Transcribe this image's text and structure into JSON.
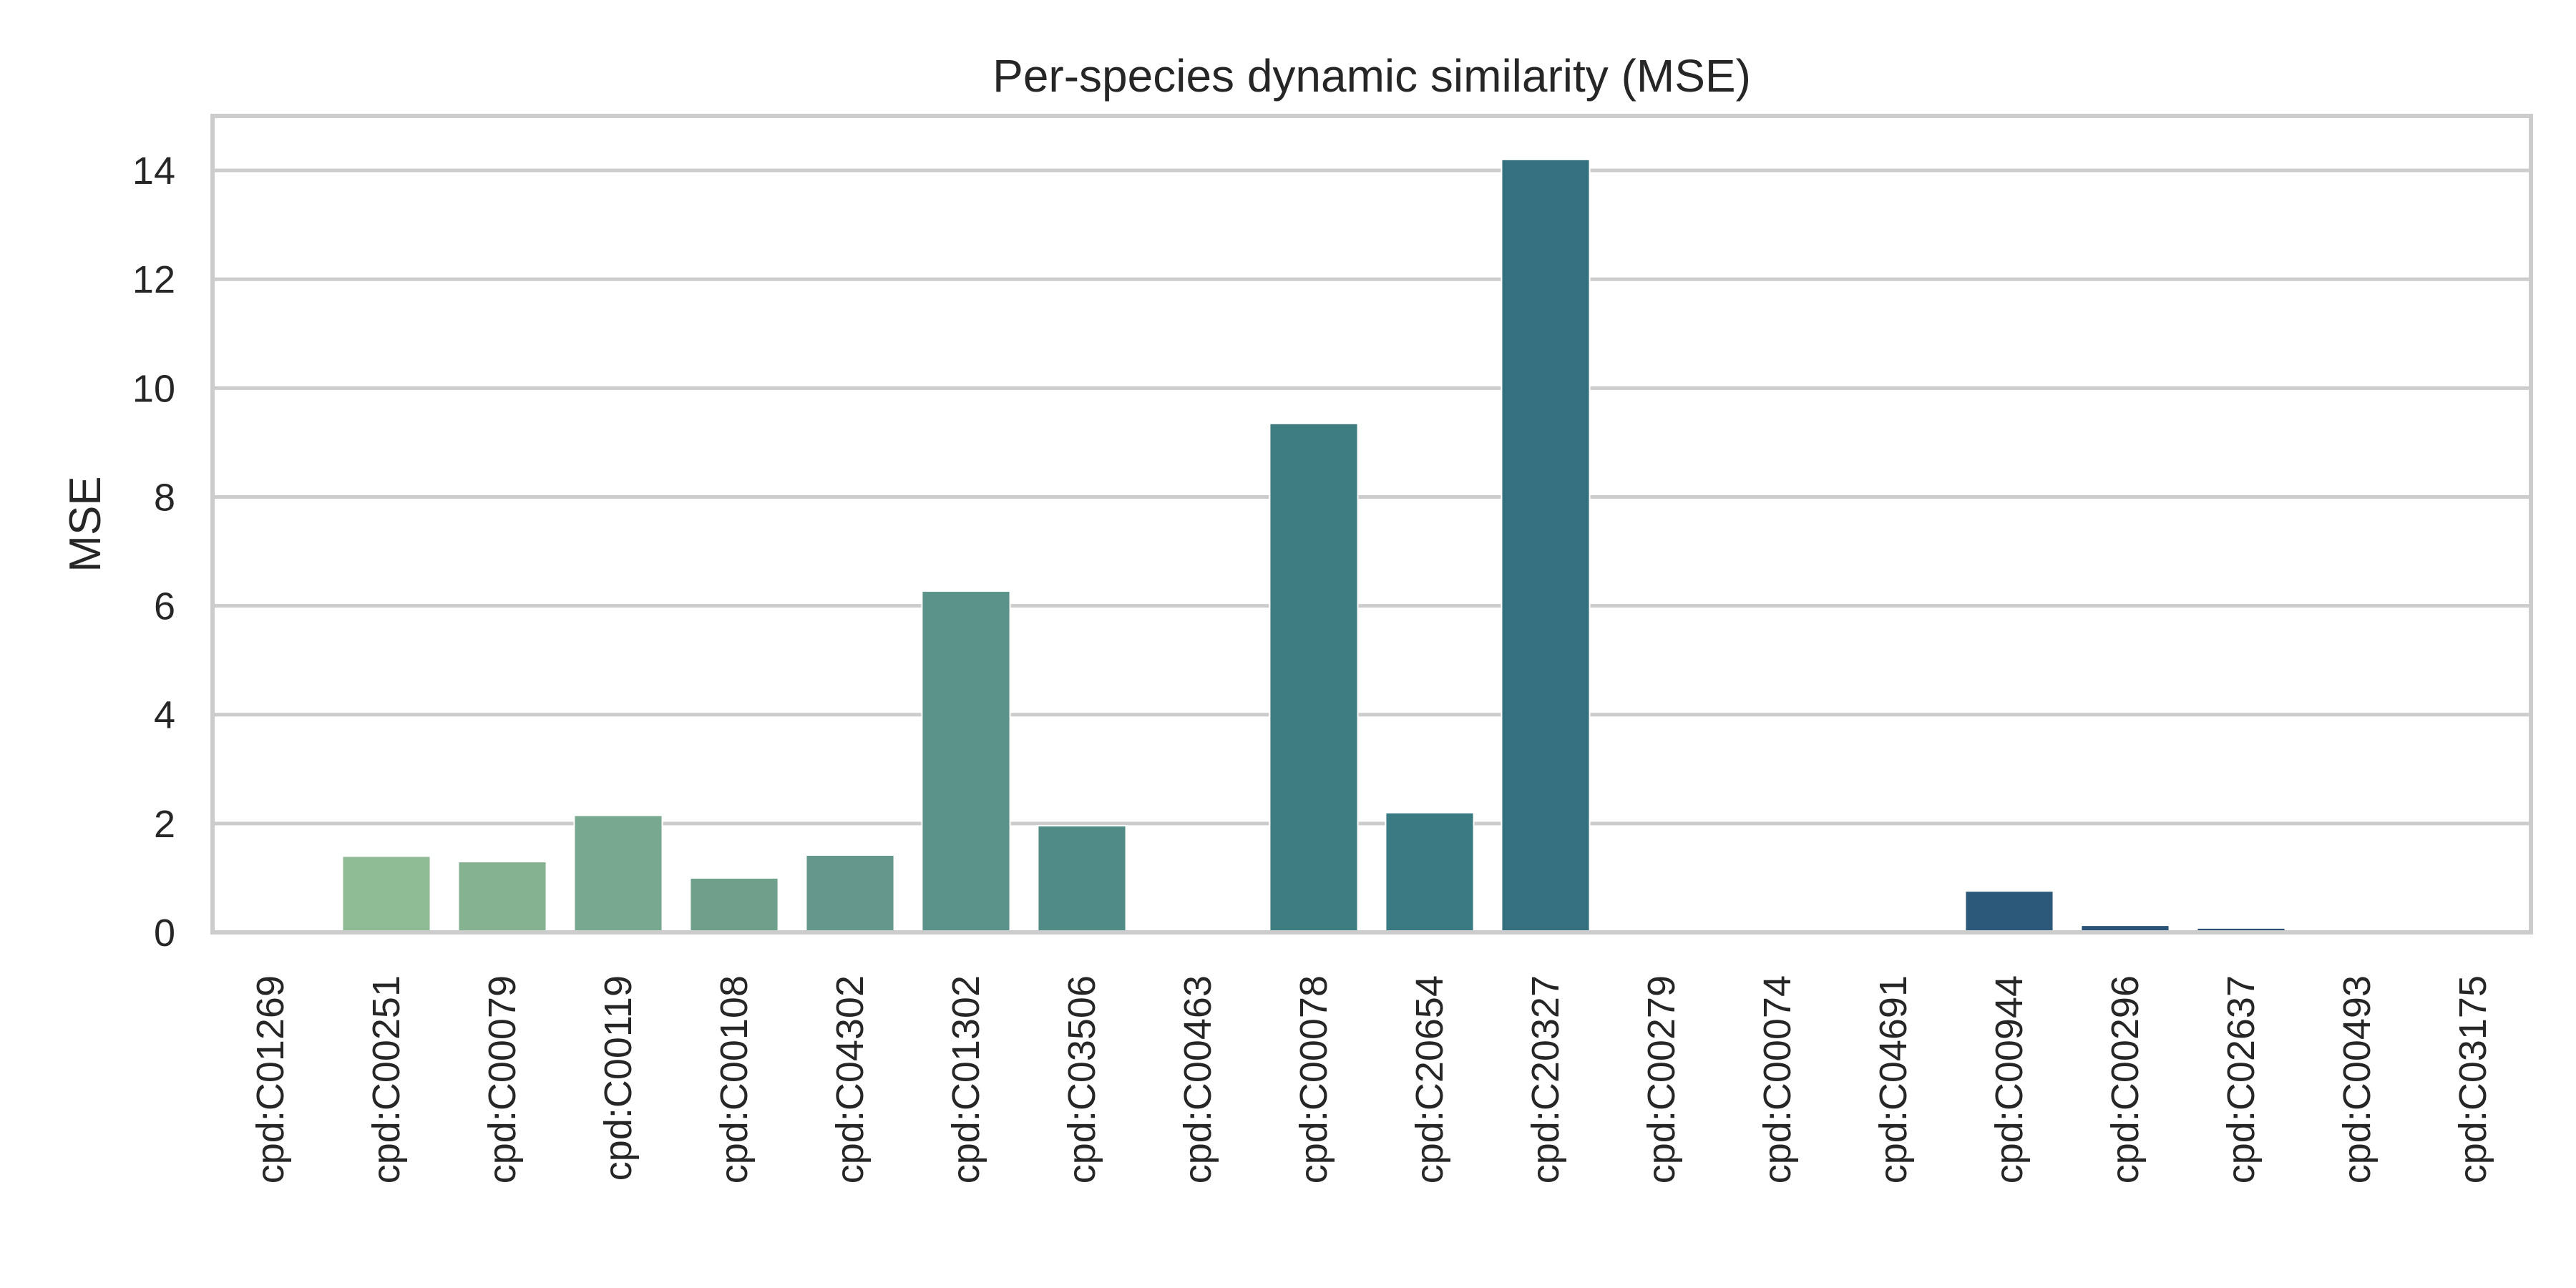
{
  "chart_data": {
    "type": "bar",
    "title": "Per-species dynamic similarity (MSE)",
    "xlabel": "",
    "ylabel": "MSE",
    "ylim": [
      0,
      15
    ],
    "yticks": [
      0,
      2,
      4,
      6,
      8,
      10,
      12,
      14
    ],
    "grid": "horizontal",
    "categories": [
      "cpd:C01269",
      "cpd:C00251",
      "cpd:C00079",
      "cpd:C00119",
      "cpd:C00108",
      "cpd:C04302",
      "cpd:C01302",
      "cpd:C03506",
      "cpd:C00463",
      "cpd:C00078",
      "cpd:C20654",
      "cpd:C20327",
      "cpd:C00279",
      "cpd:C00074",
      "cpd:C04691",
      "cpd:C00944",
      "cpd:C00296",
      "cpd:C02637",
      "cpd:C00493",
      "cpd:C03175"
    ],
    "values": [
      0.0,
      1.4,
      1.3,
      2.15,
      1.0,
      1.42,
      6.27,
      1.96,
      0.0,
      9.35,
      2.2,
      14.2,
      0.0,
      0.0,
      0.0,
      0.76,
      0.13,
      0.08,
      0.0,
      0.0
    ],
    "colors": [
      "#9ac99a",
      "#8fbc94",
      "#85b291",
      "#79a890",
      "#6fa08c",
      "#65978b",
      "#5a938a",
      "#508b86",
      "#478583",
      "#3f7e80",
      "#3a7a82",
      "#34707e",
      "#316a7e",
      "#2f647d",
      "#2d5e7b",
      "#2c5979",
      "#2b5377",
      "#2b4c73",
      "#2b4670",
      "#2a406c"
    ]
  }
}
